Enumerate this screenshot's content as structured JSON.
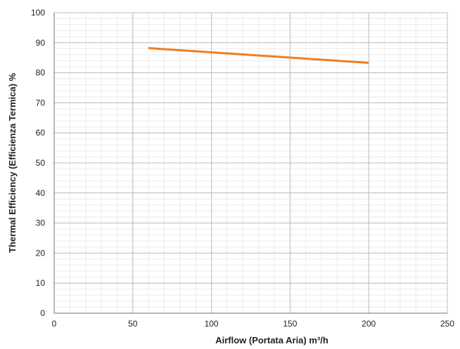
{
  "chart_data": {
    "type": "line",
    "title": "",
    "xlabel": "Airflow (Portata Aria) m³/h",
    "ylabel": "Thermal Efficiency (Efficienza Termica) %",
    "xlim": [
      0,
      250
    ],
    "ylim": [
      0,
      100
    ],
    "x_ticks": [
      0,
      50,
      100,
      150,
      200,
      250
    ],
    "y_ticks": [
      0,
      10,
      20,
      30,
      40,
      50,
      60,
      70,
      80,
      90,
      100
    ],
    "grid": true,
    "series": [
      {
        "x": [
          60,
          200
        ],
        "y": [
          88.2,
          83.3
        ],
        "color": "#f07d20"
      }
    ],
    "colors": {
      "major_grid": "#bdbdbd",
      "minor_grid": "#ebebeb",
      "axis": "#8a8a8a"
    }
  }
}
